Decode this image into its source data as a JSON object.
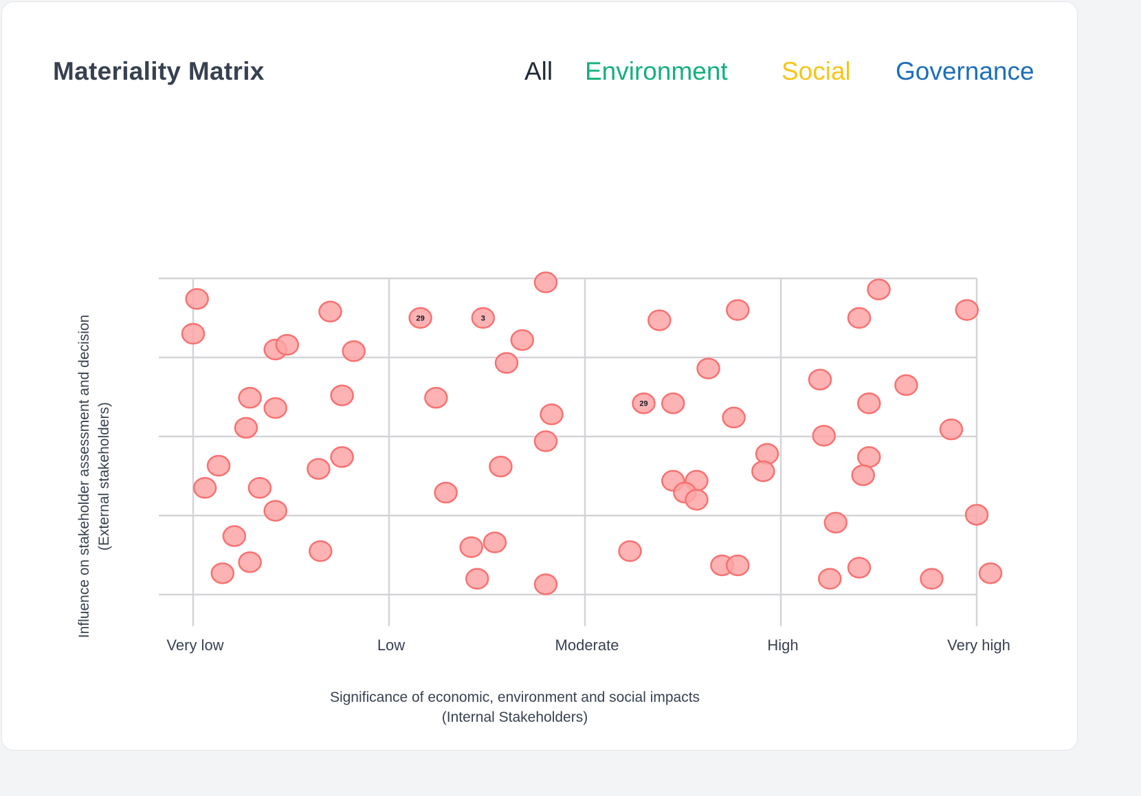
{
  "header": {
    "title": "Materiality Matrix",
    "filters": [
      {
        "label": "All",
        "color": "#1f2937"
      },
      {
        "label": "Environment",
        "color": "#14b07c"
      },
      {
        "label": "Social",
        "color": "#f5c518"
      },
      {
        "label": "Governance",
        "color": "#1d6fb8"
      }
    ]
  },
  "chart_data": {
    "type": "scatter",
    "title": "Materiality Matrix",
    "xlabel": [
      "Significance of economic, environment and social impacts",
      "(Internal Stakeholders)"
    ],
    "ylabel": [
      "Influence on stakeholder assessment and decision",
      "(External stakeholders)"
    ],
    "x_ticks": [
      "Very low",
      "Low",
      "Moderate",
      "High",
      "Very high"
    ],
    "xlim": [
      0,
      4
    ],
    "ylim": [
      0,
      4
    ],
    "grid": true,
    "point_fill": "#fda4a6",
    "point_stroke": "#f87171",
    "points": [
      {
        "x": 0.02,
        "y": 3.74,
        "label": ""
      },
      {
        "x": 0.0,
        "y": 3.3,
        "label": ""
      },
      {
        "x": 0.42,
        "y": 3.1,
        "label": ""
      },
      {
        "x": 0.48,
        "y": 3.16,
        "label": ""
      },
      {
        "x": 0.7,
        "y": 3.58,
        "label": ""
      },
      {
        "x": 0.82,
        "y": 3.08,
        "label": ""
      },
      {
        "x": 0.29,
        "y": 2.49,
        "label": ""
      },
      {
        "x": 0.42,
        "y": 2.36,
        "label": ""
      },
      {
        "x": 0.27,
        "y": 2.11,
        "label": ""
      },
      {
        "x": 0.76,
        "y": 2.52,
        "label": ""
      },
      {
        "x": 0.13,
        "y": 1.63,
        "label": ""
      },
      {
        "x": 0.06,
        "y": 1.35,
        "label": ""
      },
      {
        "x": 0.34,
        "y": 1.35,
        "label": ""
      },
      {
        "x": 0.42,
        "y": 1.06,
        "label": ""
      },
      {
        "x": 0.64,
        "y": 1.59,
        "label": ""
      },
      {
        "x": 0.76,
        "y": 1.74,
        "label": ""
      },
      {
        "x": 0.21,
        "y": 0.74,
        "label": ""
      },
      {
        "x": 0.29,
        "y": 0.41,
        "label": ""
      },
      {
        "x": 0.15,
        "y": 0.27,
        "label": ""
      },
      {
        "x": 0.65,
        "y": 0.55,
        "label": ""
      },
      {
        "x": 1.16,
        "y": 3.5,
        "label": "29"
      },
      {
        "x": 1.48,
        "y": 3.5,
        "label": "3"
      },
      {
        "x": 1.8,
        "y": 3.95,
        "label": ""
      },
      {
        "x": 1.68,
        "y": 3.22,
        "label": ""
      },
      {
        "x": 1.6,
        "y": 2.93,
        "label": ""
      },
      {
        "x": 1.24,
        "y": 2.49,
        "label": ""
      },
      {
        "x": 1.83,
        "y": 2.28,
        "label": ""
      },
      {
        "x": 1.8,
        "y": 1.94,
        "label": ""
      },
      {
        "x": 1.57,
        "y": 1.62,
        "label": ""
      },
      {
        "x": 1.29,
        "y": 1.29,
        "label": ""
      },
      {
        "x": 1.42,
        "y": 0.6,
        "label": ""
      },
      {
        "x": 1.54,
        "y": 0.66,
        "label": ""
      },
      {
        "x": 1.45,
        "y": 0.2,
        "label": ""
      },
      {
        "x": 1.8,
        "y": 0.13,
        "label": ""
      },
      {
        "x": 2.38,
        "y": 3.47,
        "label": ""
      },
      {
        "x": 2.78,
        "y": 3.6,
        "label": ""
      },
      {
        "x": 2.63,
        "y": 2.86,
        "label": ""
      },
      {
        "x": 2.3,
        "y": 2.42,
        "label": "29"
      },
      {
        "x": 2.45,
        "y": 2.42,
        "label": ""
      },
      {
        "x": 2.76,
        "y": 2.24,
        "label": ""
      },
      {
        "x": 2.93,
        "y": 1.78,
        "label": ""
      },
      {
        "x": 2.91,
        "y": 1.56,
        "label": ""
      },
      {
        "x": 2.45,
        "y": 1.44,
        "label": ""
      },
      {
        "x": 2.57,
        "y": 1.44,
        "label": ""
      },
      {
        "x": 2.51,
        "y": 1.29,
        "label": ""
      },
      {
        "x": 2.57,
        "y": 1.2,
        "label": ""
      },
      {
        "x": 2.23,
        "y": 0.55,
        "label": ""
      },
      {
        "x": 2.7,
        "y": 0.37,
        "label": ""
      },
      {
        "x": 2.78,
        "y": 0.37,
        "label": ""
      },
      {
        "x": 3.4,
        "y": 3.5,
        "label": ""
      },
      {
        "x": 3.5,
        "y": 3.86,
        "label": ""
      },
      {
        "x": 3.95,
        "y": 3.6,
        "label": ""
      },
      {
        "x": 3.2,
        "y": 2.72,
        "label": ""
      },
      {
        "x": 3.45,
        "y": 2.42,
        "label": ""
      },
      {
        "x": 3.64,
        "y": 2.65,
        "label": ""
      },
      {
        "x": 3.22,
        "y": 2.01,
        "label": ""
      },
      {
        "x": 3.87,
        "y": 2.09,
        "label": ""
      },
      {
        "x": 3.45,
        "y": 1.74,
        "label": ""
      },
      {
        "x": 3.42,
        "y": 1.51,
        "label": ""
      },
      {
        "x": 3.28,
        "y": 0.91,
        "label": ""
      },
      {
        "x": 4.0,
        "y": 1.01,
        "label": ""
      },
      {
        "x": 3.4,
        "y": 0.34,
        "label": ""
      },
      {
        "x": 3.25,
        "y": 0.2,
        "label": ""
      },
      {
        "x": 3.77,
        "y": 0.2,
        "label": ""
      },
      {
        "x": 4.07,
        "y": 0.27,
        "label": ""
      }
    ]
  }
}
